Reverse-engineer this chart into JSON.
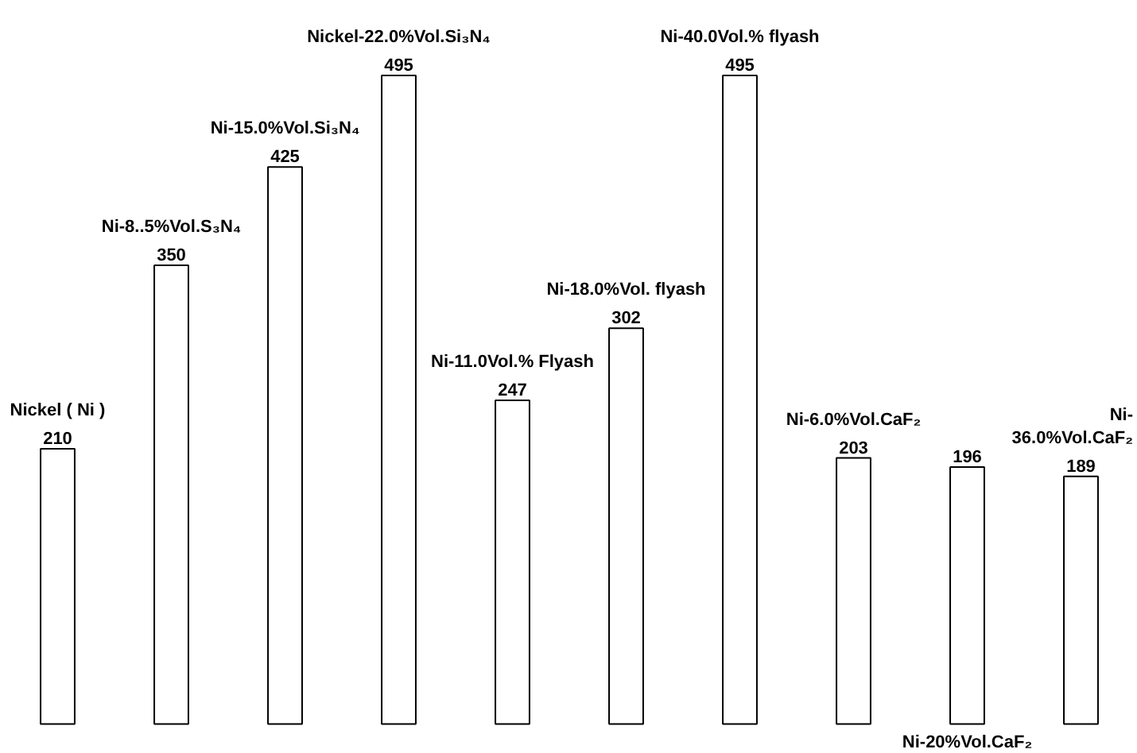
{
  "chart_data": {
    "type": "bar",
    "categories": [
      "Nickel ( Ni )",
      "Ni-8..5%Vol.S₃N₄",
      "Ni-15.0%Vol.Si₃N₄",
      "Nickel-22.0%Vol.Si₃N₄",
      "Ni-11.0Vol.% Flyash",
      "Ni-18.0%Vol. flyash",
      "Ni-40.0Vol.% flyash",
      "Ni-6.0%Vol.CaF₂",
      "Ni-20%Vol.CaF₂",
      "Ni-\n36.0%Vol.CaF₂"
    ],
    "values": [
      210,
      350,
      425,
      495,
      247,
      302,
      495,
      203,
      196,
      189
    ],
    "color": "#ffffff",
    "data_labels": true
  }
}
